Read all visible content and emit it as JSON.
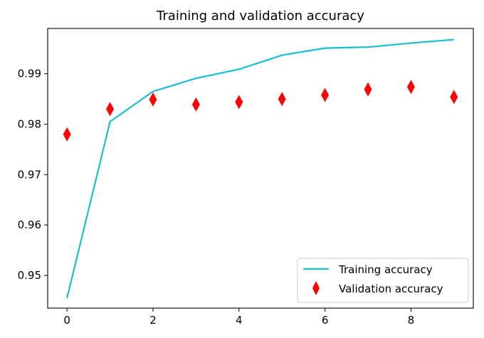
{
  "chart_data": {
    "type": "line",
    "title": "Training and validation accuracy",
    "xlabel": "",
    "ylabel": "",
    "x": [
      0,
      1,
      2,
      3,
      4,
      5,
      6,
      7,
      8,
      9
    ],
    "xlim": [
      -0.45,
      9.45
    ],
    "ylim": [
      0.9435,
      0.999
    ],
    "xticks": [
      0,
      2,
      4,
      6,
      8
    ],
    "yticks": [
      0.95,
      0.96,
      0.97,
      0.98,
      0.99
    ],
    "grid": false,
    "legend_position": "lower right",
    "series": [
      {
        "name": "Training accuracy",
        "style": "line",
        "color": "#17becf",
        "values": [
          0.9455,
          0.9805,
          0.9865,
          0.9891,
          0.9909,
          0.9937,
          0.9951,
          0.9953,
          0.9961,
          0.9968
        ]
      },
      {
        "name": "Validation accuracy",
        "style": "diamond-marker",
        "color": "#ff0000",
        "values": [
          0.978,
          0.983,
          0.9849,
          0.9839,
          0.9844,
          0.985,
          0.9858,
          0.9869,
          0.9874,
          0.9854
        ]
      }
    ]
  }
}
